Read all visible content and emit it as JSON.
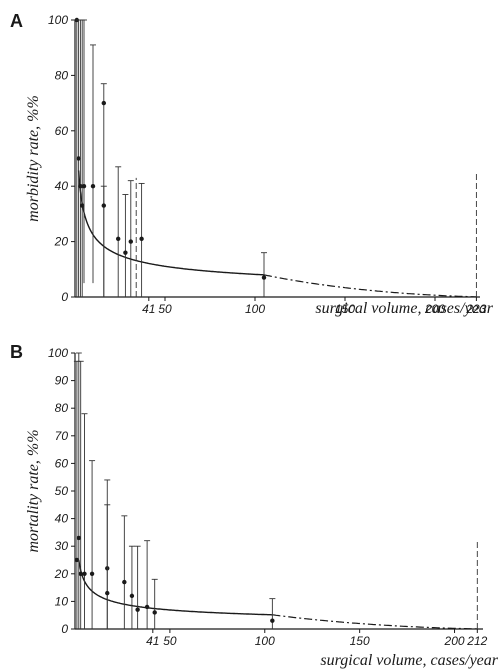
{
  "chart_data": [
    {
      "panel": "A",
      "type": "scatter",
      "ylabel": "morbidity rate, %%",
      "xlabel": "surgical volume, cases/year",
      "xlim": [
        0,
        225
      ],
      "ylim": [
        0,
        100
      ],
      "x_ticks": [
        {
          "value": 41,
          "label": "41"
        },
        {
          "value": 50,
          "label": "50"
        },
        {
          "value": 100,
          "label": "100"
        },
        {
          "value": 150,
          "label": "150"
        },
        {
          "value": 200,
          "label": "200"
        },
        {
          "value": 223,
          "label": "223"
        }
      ],
      "y_ticks": [
        0,
        20,
        40,
        60,
        80,
        100
      ],
      "points": [
        {
          "x": 1,
          "y": 100,
          "lo": 0,
          "hi": 100
        },
        {
          "x": 2,
          "y": 50,
          "lo": 0,
          "hi": 100
        },
        {
          "x": 3,
          "y": 40,
          "lo": 0,
          "hi": 100
        },
        {
          "x": 4,
          "y": 33,
          "lo": 0,
          "hi": 100
        },
        {
          "x": 5,
          "y": 40,
          "lo": 5,
          "hi": 100
        },
        {
          "x": 10,
          "y": 40,
          "lo": 5,
          "hi": 91
        },
        {
          "x": 16,
          "y": 70,
          "lo": 0,
          "hi": 77
        },
        {
          "x": 16,
          "y": 33,
          "lo": 0,
          "hi": 40
        },
        {
          "x": 24,
          "y": 21,
          "lo": 0,
          "hi": 47
        },
        {
          "x": 28,
          "y": 16,
          "lo": 0,
          "hi": 37
        },
        {
          "x": 31,
          "y": 20,
          "lo": 0,
          "hi": 42
        },
        {
          "x": 37,
          "y": 21,
          "lo": 0,
          "hi": 41
        },
        {
          "x": 105,
          "y": 7,
          "lo": 0,
          "hi": 16
        }
      ],
      "dashed_bars": [
        {
          "x": 34,
          "lo": 0,
          "hi": 43
        },
        {
          "x": 223,
          "lo": 0,
          "hi": 45
        }
      ],
      "fit": {
        "a": 62,
        "b": 0.44,
        "solid_to": 105,
        "dashdot_to": 223
      }
    },
    {
      "panel": "B",
      "type": "scatter",
      "ylabel": "mortality rate, %%",
      "xlabel": "surgical volume, cases/year",
      "xlim": [
        0,
        215
      ],
      "ylim": [
        0,
        100
      ],
      "x_ticks": [
        {
          "value": 41,
          "label": "41"
        },
        {
          "value": 50,
          "label": "50"
        },
        {
          "value": 100,
          "label": "100"
        },
        {
          "value": 150,
          "label": "150"
        },
        {
          "value": 200,
          "label": "200"
        },
        {
          "value": 212,
          "label": "212"
        }
      ],
      "y_ticks": [
        0,
        10,
        20,
        30,
        40,
        50,
        60,
        70,
        80,
        90,
        100
      ],
      "points": [
        {
          "x": 1,
          "y": 25,
          "lo": 0,
          "hi": 97
        },
        {
          "x": 2,
          "y": 33,
          "lo": 0,
          "hi": 100
        },
        {
          "x": 3,
          "y": 20,
          "lo": 0,
          "hi": 97
        },
        {
          "x": 5,
          "y": 20,
          "lo": 0,
          "hi": 78
        },
        {
          "x": 9,
          "y": 20,
          "lo": 0,
          "hi": 61
        },
        {
          "x": 17,
          "y": 22,
          "lo": 0,
          "hi": 54
        },
        {
          "x": 17,
          "y": 13,
          "lo": 0,
          "hi": 45
        },
        {
          "x": 26,
          "y": 17,
          "lo": 0,
          "hi": 41
        },
        {
          "x": 30,
          "y": 12,
          "lo": 0,
          "hi": 30
        },
        {
          "x": 33,
          "y": 7,
          "lo": 0,
          "hi": 30
        },
        {
          "x": 38,
          "y": 8,
          "lo": 0,
          "hi": 32
        },
        {
          "x": 42,
          "y": 6,
          "lo": 0,
          "hi": 18
        },
        {
          "x": 104,
          "y": 3,
          "lo": 0,
          "hi": 11
        }
      ],
      "dashed_bars": [
        {
          "x": 212,
          "lo": 0,
          "hi": 32
        }
      ],
      "fit": {
        "a": 33,
        "b": 0.4,
        "solid_to": 104,
        "dashdot_to": 212
      }
    }
  ],
  "panels_labels": [
    "A",
    "B"
  ]
}
